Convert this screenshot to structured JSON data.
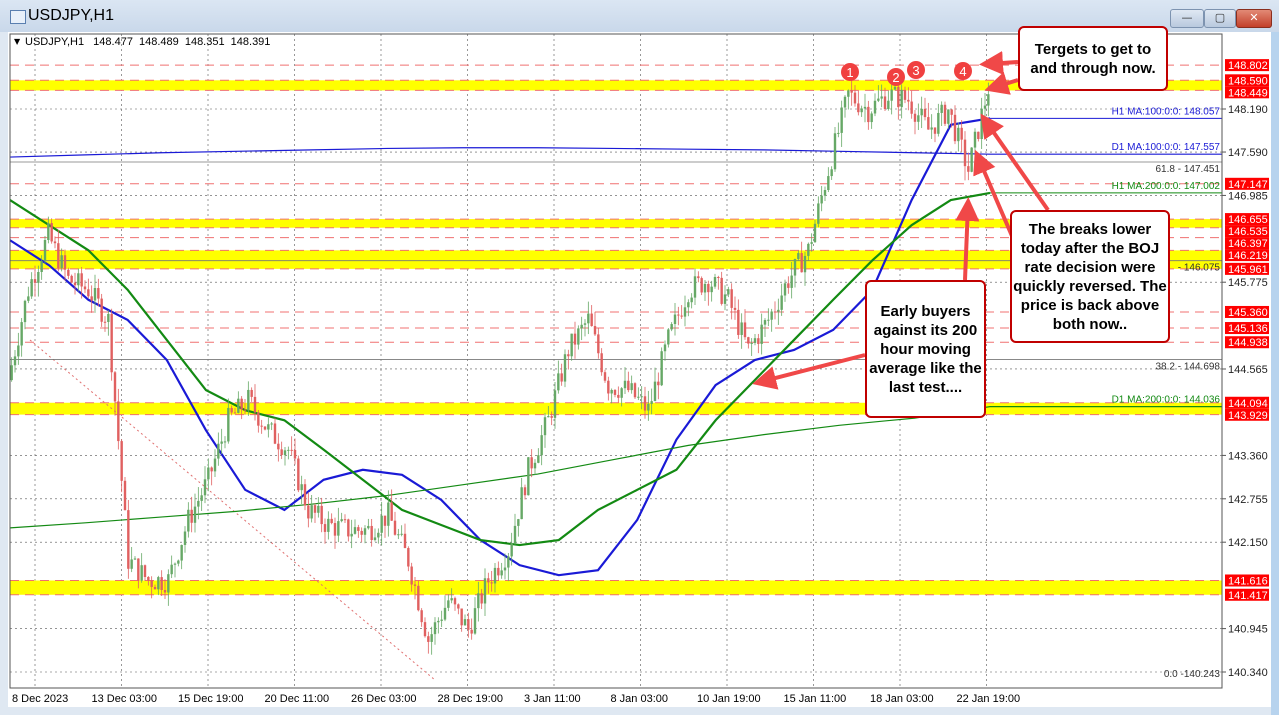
{
  "window": {
    "title": "USDJPY,H1",
    "minimize_label": "—",
    "maximize_label": "▢",
    "close_label": "✕"
  },
  "chart_header": {
    "symbol": "USDJPY,H1",
    "open": "148.477",
    "high": "148.489",
    "low": "148.351",
    "close": "148.391"
  },
  "chart_data": {
    "type": "candlestick",
    "ylim": [
      140.1,
      149.05
    ],
    "x_tick_labels": [
      "8 Dec 2023",
      "13 Dec 03:00",
      "15 Dec 19:00",
      "20 Dec 11:00",
      "26 Dec 03:00",
      "28 Dec 19:00",
      "3 Jan 11:00",
      "8 Jan 03:00",
      "10 Jan 19:00",
      "15 Jan 11:00",
      "18 Jan 03:00",
      "22 Jan 19:00"
    ],
    "y_tick_labels": [
      "148.190",
      "147.590",
      "146.985",
      "145.775",
      "144.565",
      "143.360",
      "142.755",
      "142.150",
      "140.945",
      "140.340"
    ],
    "close_path": [
      144.41,
      145.67,
      146.43,
      145.81,
      145.67,
      145.25,
      141.9,
      141.62,
      141.62,
      142.46,
      143.02,
      143.85,
      144.13,
      143.71,
      143.44,
      142.6,
      142.39,
      142.32,
      142.32,
      142.53,
      141.9,
      140.79,
      141.34,
      140.93,
      141.62,
      142.04,
      143.16,
      143.85,
      144.83,
      145.25,
      144.34,
      144.27,
      143.99,
      144.97,
      145.67,
      145.81,
      145.53,
      144.83,
      145.25,
      145.81,
      146.22,
      147.34,
      148.39,
      148.18,
      148.39,
      148.32,
      147.9,
      148.18,
      147.34,
      148.48
    ],
    "bull_color": "#66a866",
    "bear_color": "#e06060",
    "moving_averages": [
      {
        "name": "H1 MA:100:0:0: 148.057",
        "color": "#1a1ad6",
        "values": [
          146.36,
          146.01,
          145.53,
          145.25,
          144.69,
          143.71,
          142.88,
          142.6,
          143.02,
          143.16,
          143.09,
          142.74,
          142.18,
          141.83,
          141.69,
          141.76,
          142.46,
          143.58,
          144.34,
          144.69,
          144.83,
          145.11,
          145.67,
          146.92,
          147.97,
          148.06
        ]
      },
      {
        "name": "H1 MA:200:0:0: 147.002",
        "color": "#138a13",
        "values": [
          146.92,
          146.57,
          146.22,
          145.67,
          144.97,
          144.27,
          143.99,
          143.85,
          143.44,
          143.02,
          142.6,
          142.39,
          142.18,
          142.11,
          142.18,
          142.6,
          142.88,
          143.16,
          143.85,
          144.41,
          144.97,
          145.53,
          146.08,
          146.57,
          146.92,
          147.02
        ]
      },
      {
        "name": "D1 MA:100:0:0: 147.557",
        "color": "#1a1ad6",
        "values": [
          147.52,
          147.55,
          147.58,
          147.6,
          147.62,
          147.64,
          147.65,
          147.65,
          147.64,
          147.63,
          147.62,
          147.6,
          147.58,
          147.56
        ]
      },
      {
        "name": "D1 MA:200:0:0: 144.036",
        "color": "#138a13",
        "values": [
          142.35,
          142.42,
          142.5,
          142.58,
          142.68,
          142.8,
          142.95,
          143.1,
          143.3,
          143.5,
          143.65,
          143.78,
          143.88,
          144.04
        ]
      }
    ],
    "zones": [
      [
        148.59,
        148.449
      ],
      [
        146.655,
        146.535
      ],
      [
        146.219,
        145.961
      ],
      [
        144.094,
        143.929
      ],
      [
        141.616,
        141.417
      ]
    ],
    "zone_color": "#ffff00",
    "level_labels": [
      "148.802",
      "148.590",
      "148.449",
      "147.147",
      "146.655",
      "146.535",
      "146.397",
      "146.219",
      "145.961",
      "145.360",
      "145.136",
      "144.938",
      "144.094",
      "143.929",
      "141.616",
      "141.417"
    ],
    "level_color": "#ff0000",
    "fib_levels": [
      {
        "label": "61.8 - 147.451",
        "price": 147.451
      },
      {
        "label": "- 146.075",
        "price": 146.075
      },
      {
        "label": "38.2 - 144.698",
        "price": 144.698
      },
      {
        "label": "0.0 -140.243",
        "price": 140.243
      }
    ],
    "touch_markers": [
      "1",
      "2",
      "3",
      "4"
    ]
  },
  "annotations": {
    "targets": "Tergets to get to and through now.",
    "breaks": "The breaks lower today after the BOJ rate decision were quickly reversed. The price is back above both now..",
    "buyers": "Early buyers against its 200 hour moving average like the last test...."
  }
}
